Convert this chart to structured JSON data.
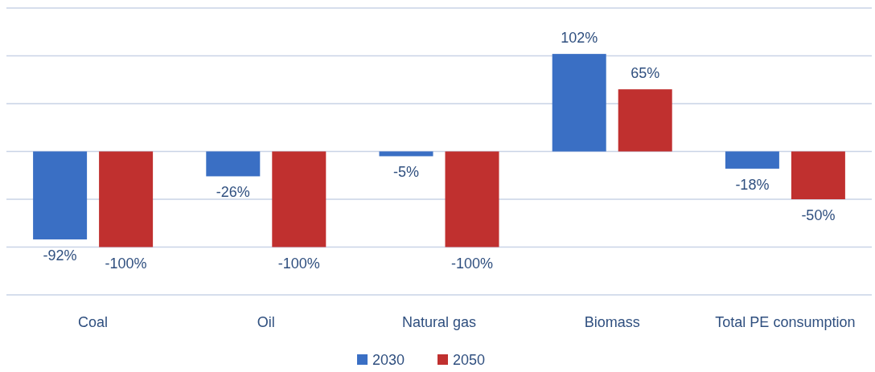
{
  "chart_data": {
    "type": "bar",
    "categories": [
      "Coal",
      "Oil",
      "Natural gas",
      "Biomass",
      "Total PE consumption"
    ],
    "series": [
      {
        "name": "2030",
        "color": "#3a6fc4",
        "values": [
          -92,
          -26,
          -5,
          102,
          -18
        ],
        "value_labels": [
          "-92%",
          "-26%",
          "-5%",
          "102%",
          "-18%"
        ]
      },
      {
        "name": "2050",
        "color": "#c0302f",
        "values": [
          -100,
          -100,
          -100,
          65,
          -50
        ],
        "value_labels": [
          "-100%",
          "-100%",
          "-100%",
          "65%",
          "-50%"
        ]
      }
    ],
    "ylim": [
      -150,
      150
    ],
    "yticks": [
      {
        "value": -150,
        "label": null
      },
      {
        "value": -100,
        "label": null
      },
      {
        "value": -50,
        "label": null
      },
      {
        "value": 0,
        "label": null
      },
      {
        "value": 50,
        "label": null
      },
      {
        "value": 100,
        "label": null
      },
      {
        "value": 150,
        "label": null
      }
    ],
    "tick_labels": "x",
    "grid": "y",
    "legend": "bottom"
  }
}
